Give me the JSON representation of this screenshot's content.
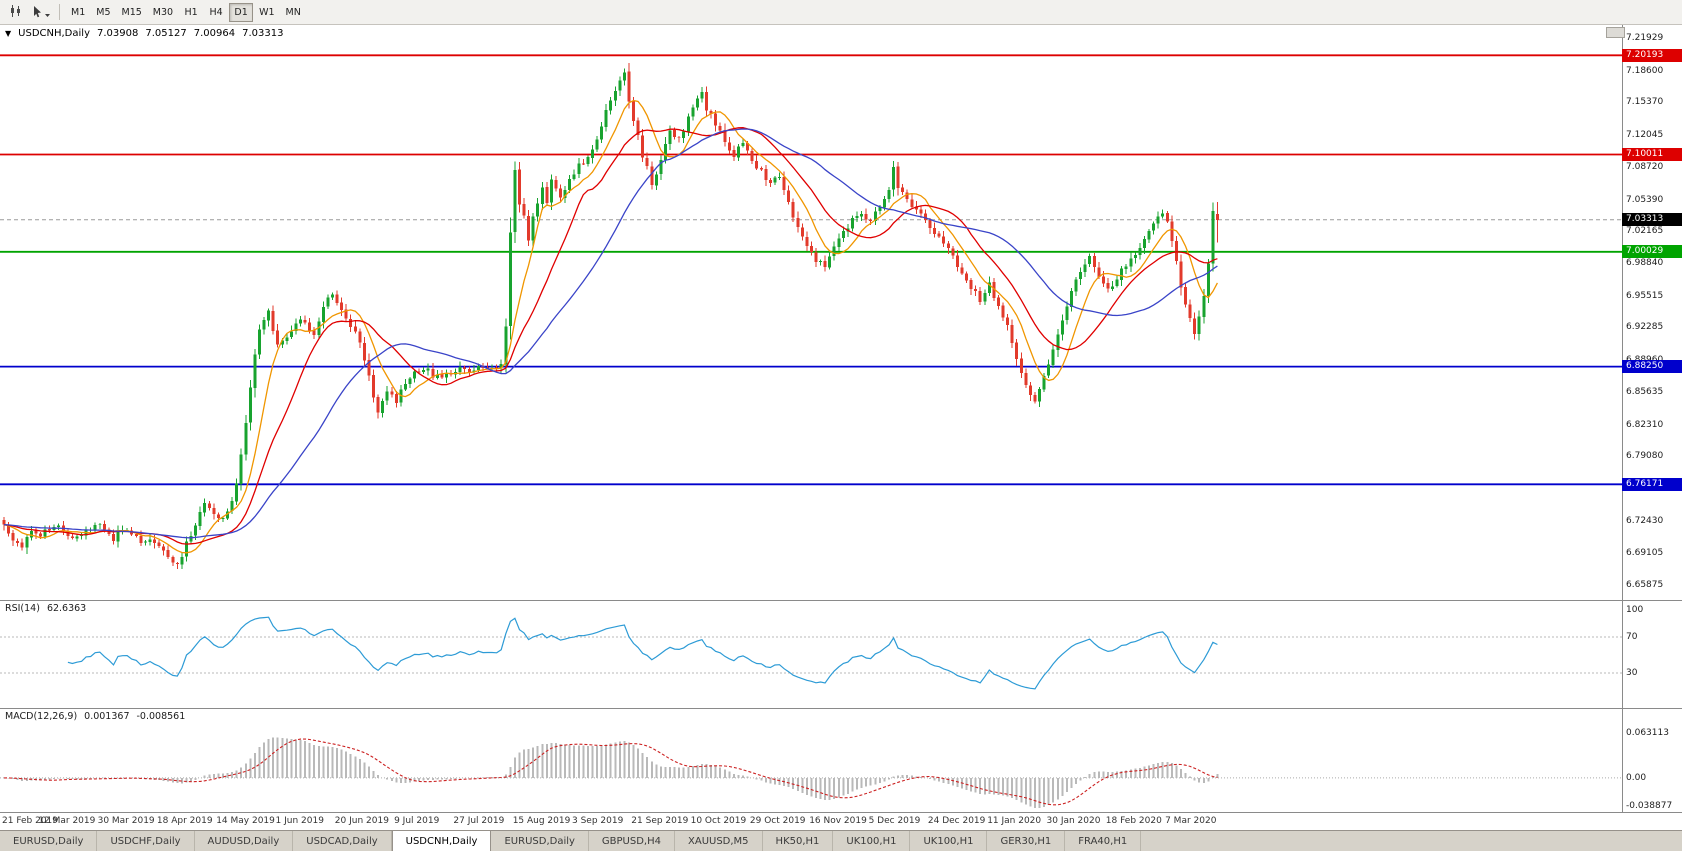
{
  "toolbar": {
    "timeframes": [
      "M1",
      "M5",
      "M15",
      "M30",
      "H1",
      "H4",
      "D1",
      "W1",
      "MN"
    ],
    "active_timeframe": "D1"
  },
  "chart": {
    "collapse_marker": "▼",
    "symbol": "USDCNH,Daily",
    "ohlc": {
      "open": "7.03908",
      "high": "7.05127",
      "low": "7.00964",
      "close": "7.03313"
    },
    "price_axis": [
      "7.21929",
      "7.18600",
      "7.15370",
      "7.12045",
      "7.08720",
      "7.05390",
      "7.02165",
      "6.98840",
      "6.95515",
      "6.92285",
      "6.88960",
      "6.85635",
      "6.82310",
      "6.79080",
      "6.75755",
      "6.72430",
      "6.69105",
      "6.65875"
    ],
    "dates": [
      "21 Feb 2019",
      "12 Mar 2019",
      "30 Mar 2019",
      "18 Apr 2019",
      "14 May 2019",
      "1 Jun 2019",
      "20 Jun 2019",
      "9 Jul 2019",
      "27 Jul 2019",
      "15 Aug 2019",
      "3 Sep 2019",
      "21 Sep 2019",
      "10 Oct 2019",
      "29 Oct 2019",
      "16 Nov 2019",
      "5 Dec 2019",
      "24 Dec 2019",
      "11 Jan 2020",
      "30 Jan 2020",
      "18 Feb 2020",
      "7 Mar 2020"
    ],
    "hlines": [
      {
        "price": 7.20193,
        "label": "7.20193",
        "color": "#dd0000"
      },
      {
        "price": 7.10011,
        "label": "7.10011",
        "color": "#dd0000"
      },
      {
        "price": 7.00029,
        "label": "7.00029",
        "color": "#00a400"
      },
      {
        "price": 6.8825,
        "label": "6.88250",
        "color": "#0000cc"
      },
      {
        "price": 6.76171,
        "label": "6.76171",
        "color": "#0000cc"
      }
    ],
    "current_price": {
      "price": 7.03313,
      "label": "7.03313",
      "color": "#000000"
    }
  },
  "rsi": {
    "name": "RSI(14)",
    "value": "62.6363",
    "levels": [
      {
        "v": 100,
        "label": "100"
      },
      {
        "v": 70,
        "label": "70"
      },
      {
        "v": 30,
        "label": "30"
      }
    ]
  },
  "macd": {
    "name": "MACD(12,26,9)",
    "value": "0.001367",
    "signal": "-0.008561",
    "levels": [
      {
        "v": 0.063113,
        "label": "0.063113"
      },
      {
        "v": 0,
        "label": "0.00"
      },
      {
        "v": -0.038877,
        "label": "-0.038877"
      }
    ]
  },
  "tabs": [
    {
      "label": "EURUSD,Daily",
      "active": false
    },
    {
      "label": "USDCHF,Daily",
      "active": false
    },
    {
      "label": "AUDUSD,Daily",
      "active": false
    },
    {
      "label": "USDCAD,Daily",
      "active": false
    },
    {
      "label": "USDCNH,Daily",
      "active": true
    },
    {
      "label": "EURUSD,Daily",
      "active": false
    },
    {
      "label": "GBPUSD,H4",
      "active": false
    },
    {
      "label": "XAUUSD,M5",
      "active": false
    },
    {
      "label": "HK50,H1",
      "active": false
    },
    {
      "label": "UK100,H1",
      "active": false
    },
    {
      "label": "UK100,H1",
      "active": false
    },
    {
      "label": "GER30,H1",
      "active": false
    },
    {
      "label": "FRA40,H1",
      "active": false
    }
  ],
  "chart_data": {
    "type": "candlestick",
    "symbol": "USDCNH",
    "timeframe": "Daily",
    "bar_count": 267,
    "plot_data_width": 1218,
    "bars_per_date_label": 13,
    "price_range": {
      "top": 7.233,
      "bottom": 6.643
    },
    "last_candle": {
      "open": 7.03908,
      "high": 7.05127,
      "low": 7.00964,
      "close": 7.03313
    },
    "price_anchors": [
      [
        0,
        6.718
      ],
      [
        2,
        6.706
      ],
      [
        4,
        6.699
      ],
      [
        6,
        6.714
      ],
      [
        8,
        6.708
      ],
      [
        10,
        6.716
      ],
      [
        12,
        6.72
      ],
      [
        14,
        6.712
      ],
      [
        16,
        6.705
      ],
      [
        18,
        6.715
      ],
      [
        20,
        6.722
      ],
      [
        22,
        6.714
      ],
      [
        24,
        6.706
      ],
      [
        26,
        6.716
      ],
      [
        28,
        6.711
      ],
      [
        30,
        6.7
      ],
      [
        32,
        6.706
      ],
      [
        34,
        6.696
      ],
      [
        36,
        6.686
      ],
      [
        38,
        6.678
      ],
      [
        40,
        6.7
      ],
      [
        42,
        6.722
      ],
      [
        44,
        6.74
      ],
      [
        46,
        6.733
      ],
      [
        48,
        6.726
      ],
      [
        50,
        6.744
      ],
      [
        51,
        6.762
      ],
      [
        52,
        6.794
      ],
      [
        53,
        6.828
      ],
      [
        54,
        6.864
      ],
      [
        55,
        6.896
      ],
      [
        56,
        6.918
      ],
      [
        57,
        6.93
      ],
      [
        58,
        6.938
      ],
      [
        59,
        6.92
      ],
      [
        60,
        6.906
      ],
      [
        62,
        6.914
      ],
      [
        64,
        6.926
      ],
      [
        66,
        6.93
      ],
      [
        67,
        6.918
      ],
      [
        68,
        6.912
      ],
      [
        70,
        6.944
      ],
      [
        72,
        6.958
      ],
      [
        74,
        6.942
      ],
      [
        76,
        6.926
      ],
      [
        78,
        6.906
      ],
      [
        80,
        6.872
      ],
      [
        81,
        6.852
      ],
      [
        82,
        6.838
      ],
      [
        84,
        6.856
      ],
      [
        86,
        6.848
      ],
      [
        88,
        6.864
      ],
      [
        90,
        6.876
      ],
      [
        92,
        6.882
      ],
      [
        94,
        6.874
      ],
      [
        96,
        6.87
      ],
      [
        98,
        6.876
      ],
      [
        100,
        6.88
      ],
      [
        102,
        6.876
      ],
      [
        104,
        6.882
      ],
      [
        106,
        6.878
      ],
      [
        108,
        6.88
      ],
      [
        109,
        6.886
      ],
      [
        110,
        6.924
      ],
      [
        111,
        7.022
      ],
      [
        112,
        7.084
      ],
      [
        113,
        7.052
      ],
      [
        114,
        7.034
      ],
      [
        115,
        7.012
      ],
      [
        116,
        7.034
      ],
      [
        117,
        7.052
      ],
      [
        118,
        7.064
      ],
      [
        119,
        7.048
      ],
      [
        120,
        7.072
      ],
      [
        122,
        7.056
      ],
      [
        124,
        7.076
      ],
      [
        126,
        7.088
      ],
      [
        128,
        7.096
      ],
      [
        130,
        7.116
      ],
      [
        132,
        7.146
      ],
      [
        134,
        7.168
      ],
      [
        136,
        7.186
      ],
      [
        137,
        7.158
      ],
      [
        138,
        7.136
      ],
      [
        140,
        7.098
      ],
      [
        142,
        7.072
      ],
      [
        144,
        7.094
      ],
      [
        146,
        7.124
      ],
      [
        148,
        7.114
      ],
      [
        150,
        7.136
      ],
      [
        152,
        7.158
      ],
      [
        153,
        7.164
      ],
      [
        154,
        7.148
      ],
      [
        156,
        7.132
      ],
      [
        158,
        7.112
      ],
      [
        160,
        7.096
      ],
      [
        162,
        7.114
      ],
      [
        164,
        7.096
      ],
      [
        166,
        7.082
      ],
      [
        168,
        7.072
      ],
      [
        170,
        7.076
      ],
      [
        172,
        7.048
      ],
      [
        174,
        7.026
      ],
      [
        176,
        7.004
      ],
      [
        178,
        6.99
      ],
      [
        180,
        6.988
      ],
      [
        182,
        7.008
      ],
      [
        184,
        7.022
      ],
      [
        186,
        7.032
      ],
      [
        188,
        7.038
      ],
      [
        190,
        7.032
      ],
      [
        192,
        7.048
      ],
      [
        194,
        7.066
      ],
      [
        195,
        7.088
      ],
      [
        196,
        7.066
      ],
      [
        198,
        7.052
      ],
      [
        200,
        7.042
      ],
      [
        202,
        7.032
      ],
      [
        204,
        7.018
      ],
      [
        206,
        7.012
      ],
      [
        208,
        6.996
      ],
      [
        210,
        6.978
      ],
      [
        212,
        6.962
      ],
      [
        214,
        6.952
      ],
      [
        216,
        6.966
      ],
      [
        218,
        6.946
      ],
      [
        220,
        6.922
      ],
      [
        222,
        6.892
      ],
      [
        224,
        6.864
      ],
      [
        226,
        6.848
      ],
      [
        228,
        6.872
      ],
      [
        230,
        6.902
      ],
      [
        232,
        6.932
      ],
      [
        234,
        6.962
      ],
      [
        236,
        6.982
      ],
      [
        238,
        6.996
      ],
      [
        240,
        6.976
      ],
      [
        242,
        6.962
      ],
      [
        244,
        6.974
      ],
      [
        246,
        6.986
      ],
      [
        248,
        6.998
      ],
      [
        250,
        7.012
      ],
      [
        252,
        7.026
      ],
      [
        254,
        7.042
      ],
      [
        255,
        7.032
      ],
      [
        256,
        7.012
      ],
      [
        257,
        6.988
      ],
      [
        258,
        6.966
      ],
      [
        259,
        6.946
      ],
      [
        260,
        6.932
      ],
      [
        261,
        6.914
      ],
      [
        262,
        6.934
      ],
      [
        263,
        6.958
      ],
      [
        264,
        6.988
      ],
      [
        265,
        7.042
      ],
      [
        266,
        7.033
      ]
    ],
    "moving_averages": [
      {
        "period": 8,
        "color": "#f09600"
      },
      {
        "period": 17,
        "color": "#e00000"
      },
      {
        "period": 34,
        "color": "#3a44c8"
      }
    ],
    "rsi": {
      "period": 14,
      "color": "#2d9bd6",
      "range": [
        0,
        100
      ],
      "level_lines": [
        70,
        30
      ]
    },
    "macd": {
      "fast": 12,
      "slow": 26,
      "signal": 9,
      "hist_color": "#b9b9b9",
      "signal_color": "#cc2222",
      "range": [
        -0.042,
        0.092
      ]
    },
    "candle_colors": {
      "up": "#18a32f",
      "down": "#e23a2b"
    },
    "current_price_line_color": "#9a9a9a"
  }
}
